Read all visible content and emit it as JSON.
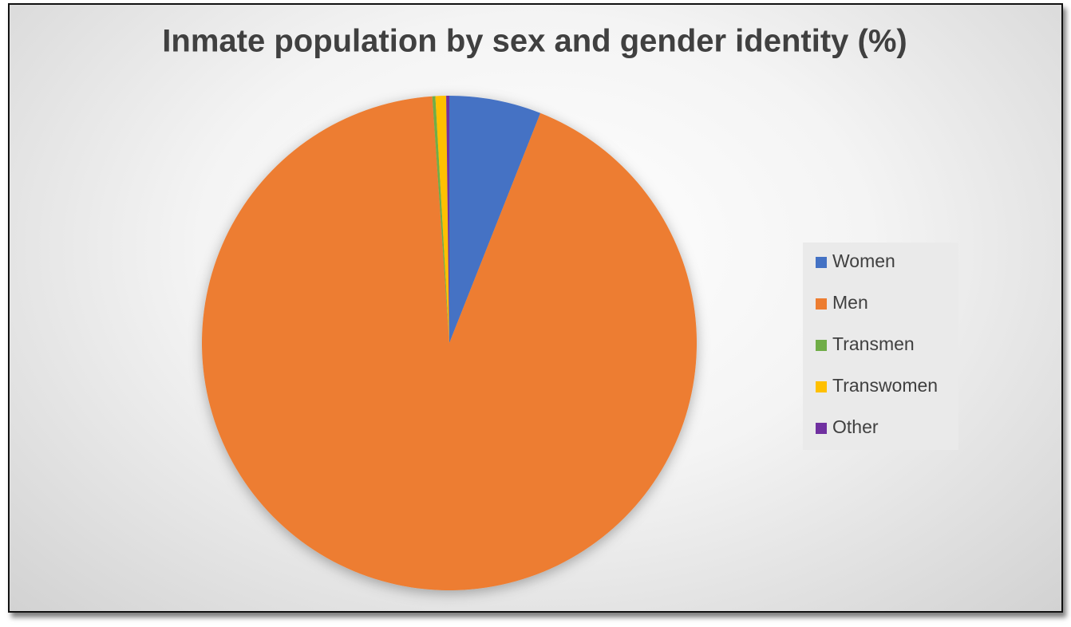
{
  "chart_data": {
    "type": "pie",
    "title": "Inmate population by sex and gender identity (%)",
    "categories": [
      "Women",
      "Men",
      "Transmen",
      "Transwomen",
      "Other"
    ],
    "values": [
      6.0,
      92.9,
      0.2,
      0.7,
      0.2
    ],
    "colors": [
      "#4472c4",
      "#ed7d31",
      "#70ad47",
      "#ffc000",
      "#7030a0"
    ],
    "legend": "right"
  }
}
